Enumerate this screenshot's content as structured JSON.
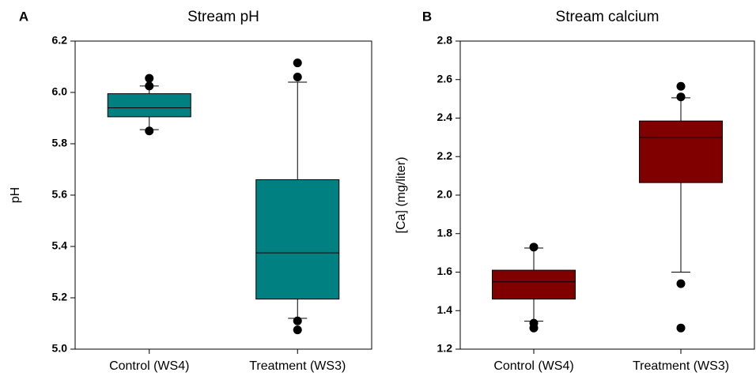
{
  "chart_data": [
    {
      "type": "box",
      "panel_label": "A",
      "title": "Stream pH",
      "ylabel": "pH",
      "color": "#008080",
      "categories": [
        "Control (WS4)",
        "Treatment (WS3)"
      ],
      "boxes": [
        {
          "whisker_low": 5.855,
          "q1": 5.905,
          "median": 5.94,
          "q3": 5.995,
          "whisker_high": 6.025,
          "outliers": [
            5.85,
            6.025,
            6.055
          ]
        },
        {
          "whisker_low": 5.12,
          "q1": 5.195,
          "median": 5.375,
          "q3": 5.66,
          "whisker_high": 6.04,
          "outliers": [
            5.075,
            5.11,
            6.06,
            6.115
          ]
        }
      ],
      "ylim": [
        5.0,
        6.2
      ],
      "yticks": [
        {
          "value": 5.0,
          "label": "5.0"
        },
        5.2,
        5.4,
        5.6,
        5.8,
        {
          "value": 6.0,
          "label": "6.0"
        },
        6.2
      ]
    },
    {
      "type": "box",
      "panel_label": "B",
      "title": "Stream calcium",
      "ylabel": "[Ca] (mg/liter)",
      "color": "#800000",
      "categories": [
        "Control (WS4)",
        "Treatment (WS3)"
      ],
      "boxes": [
        {
          "whisker_low": 1.345,
          "q1": 1.46,
          "median": 1.55,
          "q3": 1.61,
          "whisker_high": 1.725,
          "outliers": [
            1.31,
            1.335,
            1.73
          ]
        },
        {
          "whisker_low": 1.6,
          "q1": 2.065,
          "median": 2.3,
          "q3": 2.385,
          "whisker_high": 2.505,
          "outliers": [
            1.31,
            1.54,
            2.51,
            2.565
          ]
        }
      ],
      "ylim": [
        1.2,
        2.8
      ],
      "yticks": [
        1.2,
        1.4,
        1.6,
        1.8,
        {
          "value": 2.0,
          "label": "2.0"
        },
        2.2,
        2.4,
        2.6,
        2.8
      ]
    }
  ]
}
